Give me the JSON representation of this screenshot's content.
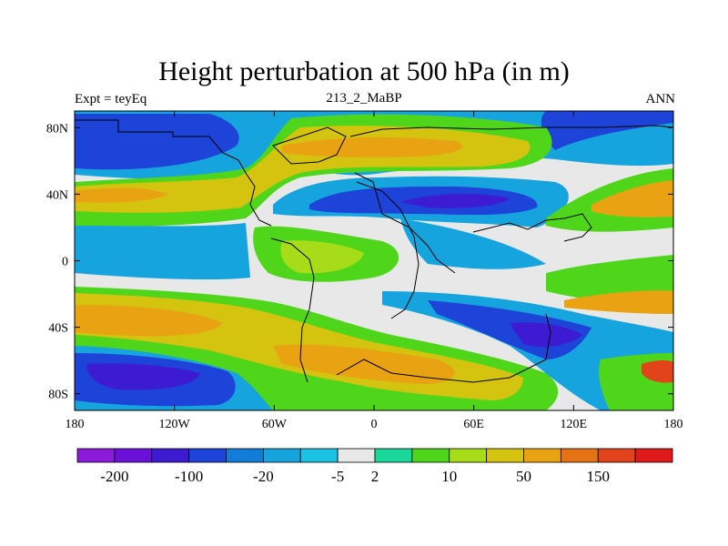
{
  "chart_data": {
    "type": "heatmap",
    "title": "Height perturbation at 500 hPa (in m)",
    "left_string": "Expt = teyEq",
    "center_string": "213_2_MaBP",
    "right_string": "ANN",
    "x_range": [
      -180,
      180
    ],
    "y_range": [
      -90,
      90
    ],
    "x_ticks": [
      {
        "value": -180,
        "label": "180"
      },
      {
        "value": -120,
        "label": "120W"
      },
      {
        "value": -60,
        "label": "60W"
      },
      {
        "value": 0,
        "label": "0"
      },
      {
        "value": 60,
        "label": "60E"
      },
      {
        "value": 120,
        "label": "120E"
      },
      {
        "value": 180,
        "label": "180"
      }
    ],
    "y_ticks": [
      {
        "value": 80,
        "label": "80N"
      },
      {
        "value": 40,
        "label": "40N"
      },
      {
        "value": 0,
        "label": "0"
      },
      {
        "value": -40,
        "label": "40S"
      },
      {
        "value": -80,
        "label": "80S"
      }
    ],
    "colorbar": {
      "colors": [
        "#8b1bd9",
        "#6a10d8",
        "#3c1bd2",
        "#1d43d8",
        "#117dd9",
        "#16a4de",
        "#1bc2e4",
        "#e8e8e8",
        "#1ad79a",
        "#4fd61b",
        "#a6dc18",
        "#d4c40f",
        "#e8a212",
        "#e57314",
        "#e2431a",
        "#e01a1a"
      ],
      "labels": [
        {
          "after_box": 1,
          "text": "-200"
        },
        {
          "after_box": 3,
          "text": "-100"
        },
        {
          "after_box": 5,
          "text": "-20"
        },
        {
          "after_box": 7,
          "text": "-5"
        },
        {
          "after_box": 8,
          "text": "2"
        },
        {
          "after_box": 10,
          "text": "10"
        },
        {
          "after_box": 12,
          "text": "50"
        },
        {
          "after_box": 14,
          "text": "150"
        }
      ]
    },
    "field_features": [
      {
        "level": 50,
        "lon": -150,
        "lat": 40,
        "rx": 35,
        "ry": 10
      },
      {
        "level": 50,
        "lon": -30,
        "lat": 60,
        "rx": 50,
        "ry": 12
      },
      {
        "level": 10,
        "lon": -30,
        "lat": 5,
        "rx": 25,
        "ry": 15
      },
      {
        "level": 50,
        "lon": -140,
        "lat": -37,
        "rx": 40,
        "ry": 10
      },
      {
        "level": 50,
        "lon": 10,
        "lat": -65,
        "rx": 40,
        "ry": 12
      },
      {
        "level": 50,
        "lon": 165,
        "lat": 30,
        "rx": 20,
        "ry": 10
      },
      {
        "level": 50,
        "lon": 150,
        "lat": -32,
        "rx": 25,
        "ry": 8
      },
      {
        "level": -100,
        "lon": -135,
        "lat": 75,
        "rx": 45,
        "ry": 8
      },
      {
        "level": -100,
        "lon": 70,
        "lat": 35,
        "rx": 55,
        "ry": 10
      },
      {
        "level": -100,
        "lon": -150,
        "lat": -68,
        "rx": 35,
        "ry": 8
      },
      {
        "level": -100,
        "lon": 130,
        "lat": -45,
        "rx": 25,
        "ry": 7
      },
      {
        "level": -100,
        "lon": 150,
        "lat": 80,
        "rx": 30,
        "ry": 7
      }
    ]
  }
}
